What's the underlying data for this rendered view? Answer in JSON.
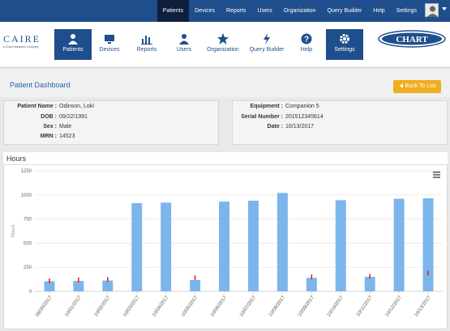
{
  "topnav": {
    "items": [
      "Patients",
      "Devices",
      "Reports",
      "Users",
      "Organization",
      "Query Builder",
      "Help",
      "Settings"
    ],
    "active": "Patients"
  },
  "brand": {
    "left_logo": "CAIRE",
    "left_tagline": "A Chart Industries Company",
    "right_logo": "CHART"
  },
  "mainnav": {
    "items": [
      {
        "label": "Patients",
        "icon": "person-icon",
        "active": true
      },
      {
        "label": "Devices",
        "icon": "monitor-icon",
        "active": false
      },
      {
        "label": "Reports",
        "icon": "bar-chart-icon",
        "active": false
      },
      {
        "label": "Users",
        "icon": "user-icon",
        "active": false
      },
      {
        "label": "Organization",
        "icon": "star-icon",
        "active": false
      },
      {
        "label": "Query Builder",
        "icon": "bolt-icon",
        "active": false
      },
      {
        "label": "Help",
        "icon": "question-icon",
        "active": false
      },
      {
        "label": "Settings",
        "icon": "gear-icon",
        "active": true
      }
    ]
  },
  "page": {
    "title": "Patient Dashboard",
    "back_button": "Back To List"
  },
  "patient": {
    "name_label": "Patient Name :",
    "name": "Odinson, Loki",
    "dob_label": "DOB :",
    "dob": "09/22/1991",
    "sex_label": "Sex :",
    "sex": "Male",
    "mrn_label": "MRN :",
    "mrn": "14523"
  },
  "equipment": {
    "equipment_label": "Equipment :",
    "equipment": "Companion 5",
    "serial_label": "Serial Number :",
    "serial": "201512345614",
    "date_label": "Date :",
    "date": "10/13/2017"
  },
  "chart_panel": {
    "title": "Hours"
  },
  "colors": {
    "bar": "#7cb5ec",
    "marker": "#e8232a",
    "nav": "#1f4e8c",
    "accent": "#f0ad1e"
  },
  "chart_data": {
    "type": "bar",
    "title": "",
    "ylabel": "Hours",
    "ylim": [
      0,
      1250
    ],
    "yticks": [
      0,
      250,
      500,
      750,
      1000,
      1250
    ],
    "categories": [
      "09/30/2017",
      "10/01/2017",
      "10/02/2017",
      "10/03/2017",
      "10/04/2017",
      "10/05/2017",
      "10/06/2017",
      "10/07/2017",
      "10/08/2017",
      "10/09/2017",
      "10/10/2017",
      "10/11/2017",
      "10/12/2017",
      "10/13/2017"
    ],
    "series": [
      {
        "values": [
          105,
          108,
          112,
          915,
          920,
          118,
          930,
          940,
          1020,
          140,
          945,
          150,
          960,
          965
        ]
      }
    ],
    "markers": [
      108,
      118,
      122,
      null,
      null,
      140,
      null,
      null,
      null,
      150,
      null,
      155,
      null,
      190
    ],
    "grid": true
  }
}
